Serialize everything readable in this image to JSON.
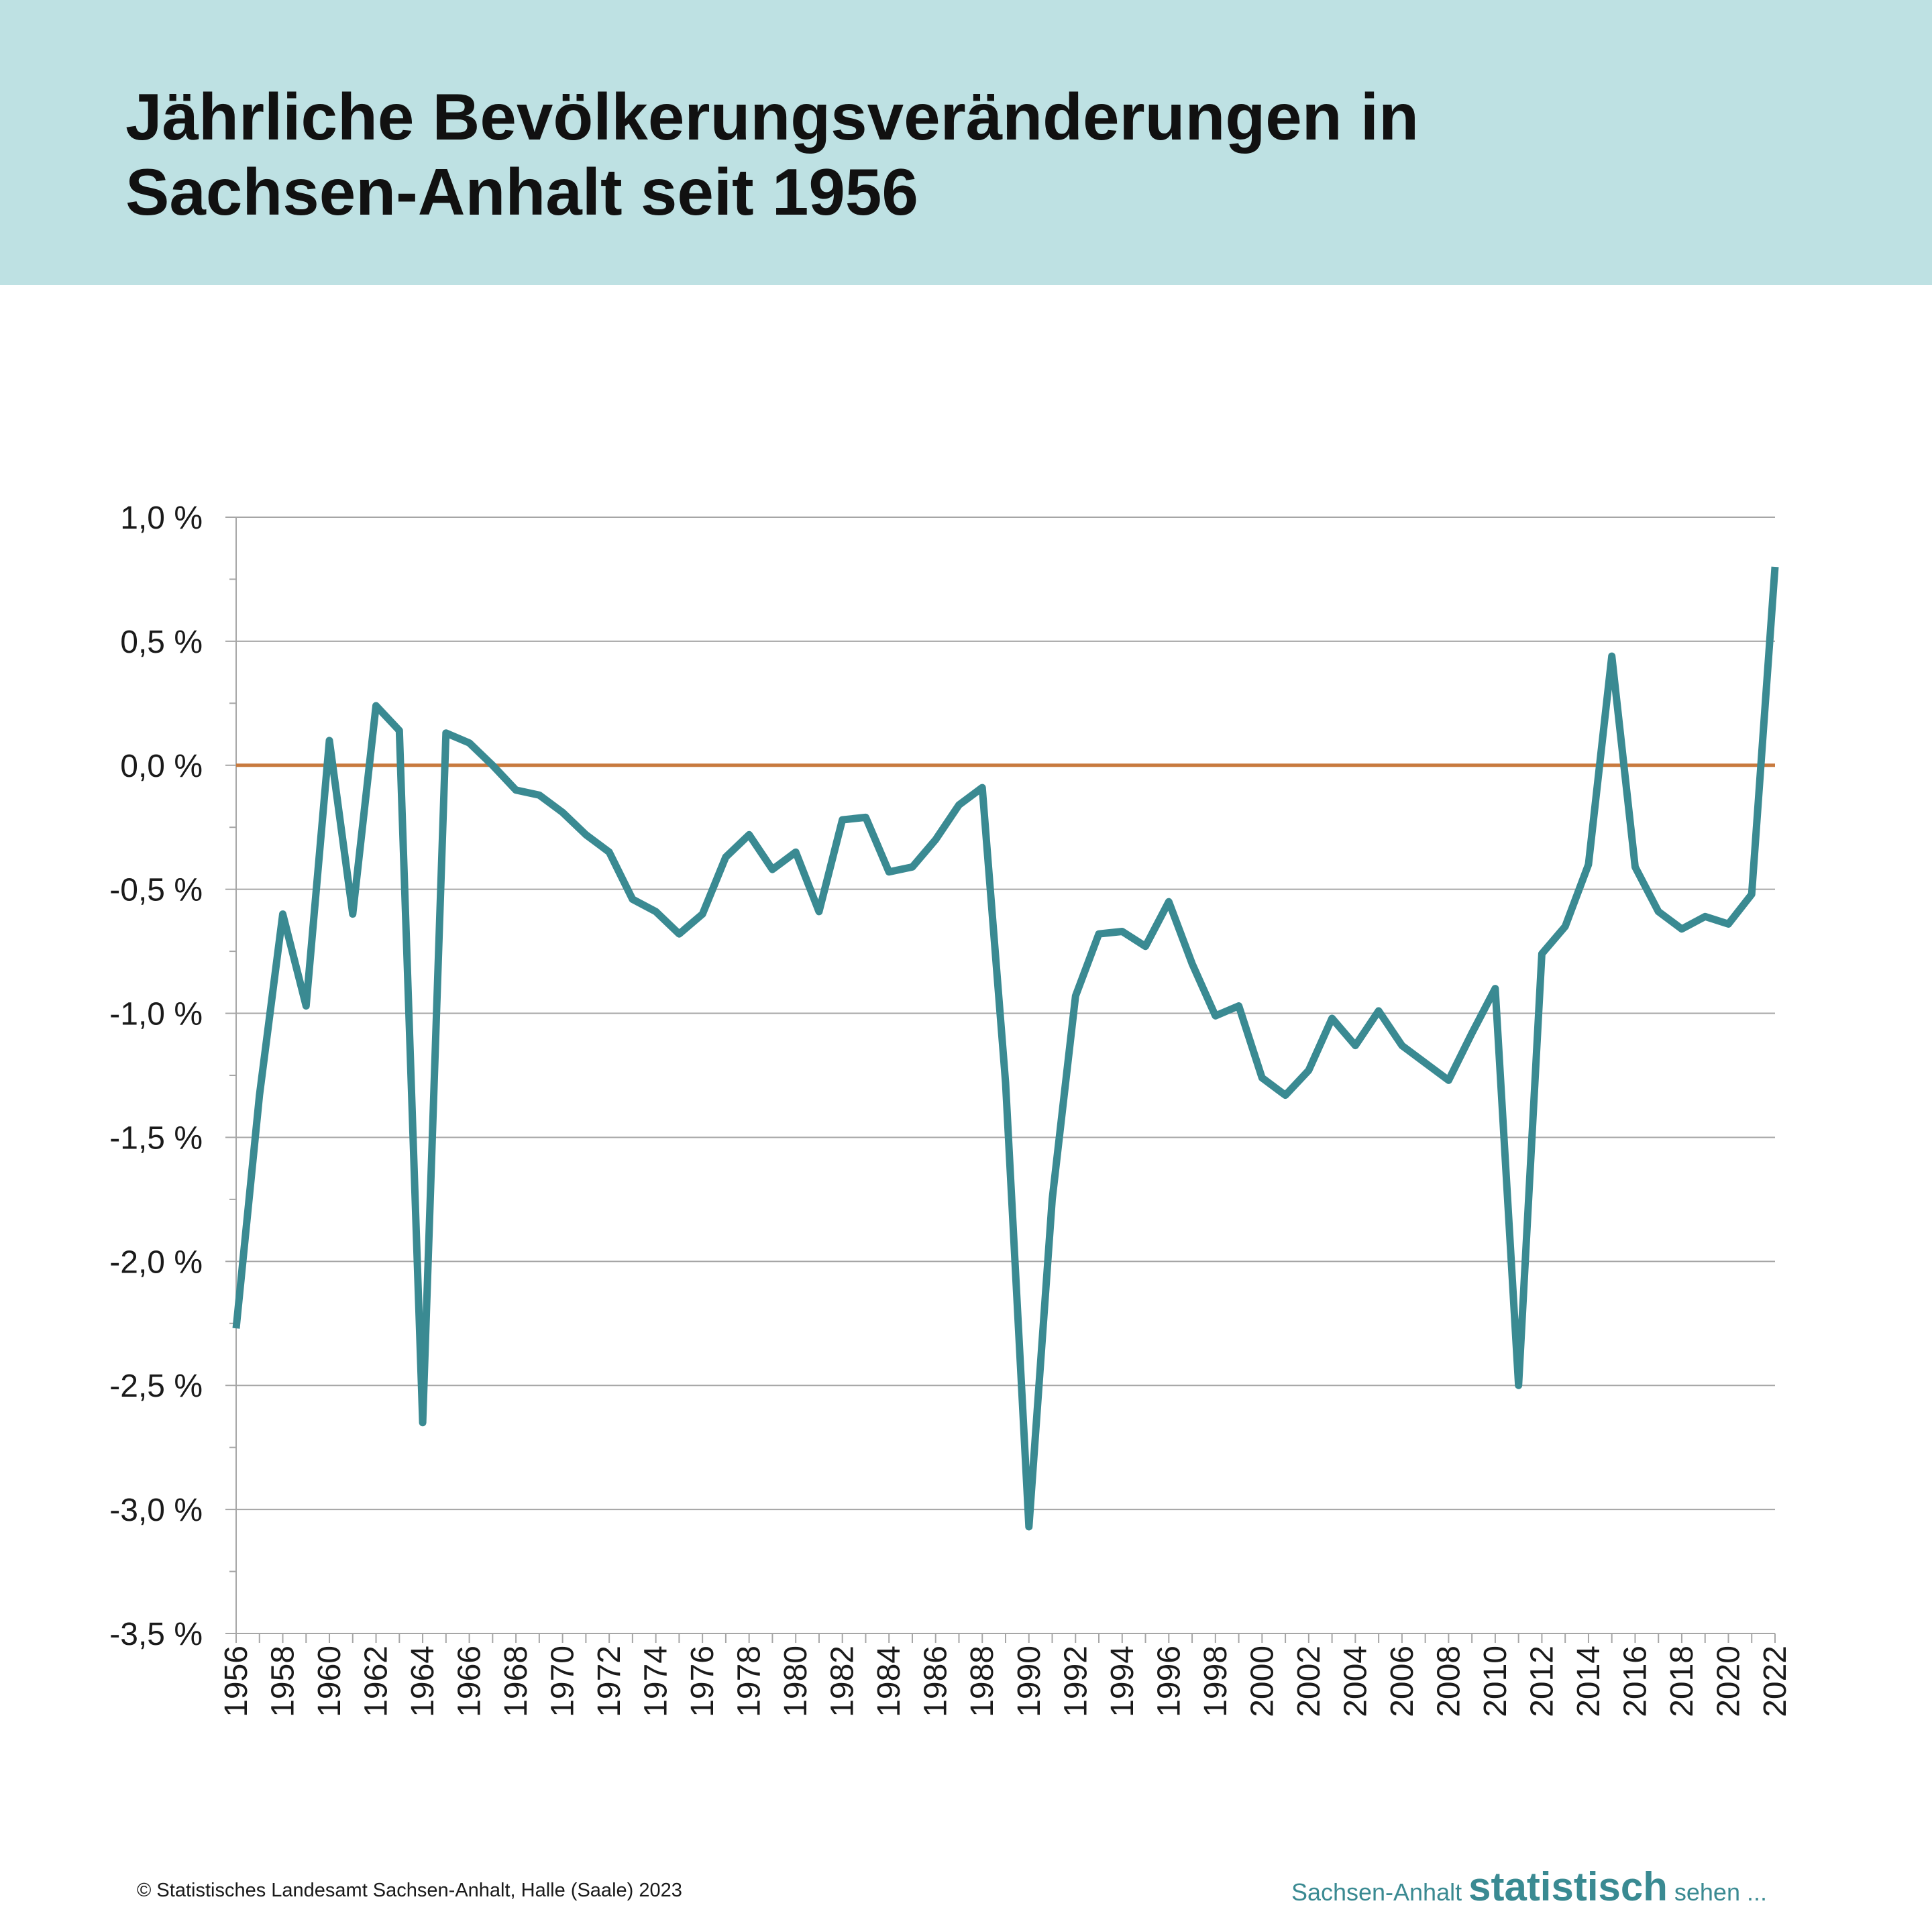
{
  "header": {
    "title_line1": "Jährliche Bevölkerungsveränderungen in",
    "title_line2": "Sachsen-Anhalt seit 1956"
  },
  "colors": {
    "header_bg": "#bee1e3",
    "line": "#3a8a92",
    "zero_line": "#c87a3e",
    "grid": "#a6a6a6"
  },
  "chart_data": {
    "type": "line",
    "title": "Jährliche Bevölkerungsveränderungen in Sachsen-Anhalt seit 1956",
    "xlabel": "",
    "ylabel": "",
    "ylim": [
      -3.5,
      1.0
    ],
    "y_ticks": [
      1.0,
      0.5,
      0.0,
      -0.5,
      -1.0,
      -1.5,
      -2.0,
      -2.5,
      -3.0,
      -3.5
    ],
    "y_tick_labels": [
      "1,0 %",
      "0,5 %",
      "0,0 %",
      "-0,5 %",
      "-1,0 %",
      "-1,5 %",
      "-2,0 %",
      "-2,5 %",
      "-3,0 %",
      "-3,5 %"
    ],
    "x_tick_labels": [
      "1956",
      "1958",
      "1960",
      "1962",
      "1964",
      "1966",
      "1968",
      "1970",
      "1972",
      "1974",
      "1976",
      "1978",
      "1980",
      "1982",
      "1984",
      "1986",
      "1988",
      "1990",
      "1992",
      "1994",
      "1996",
      "1998",
      "2000",
      "2002",
      "2004",
      "2006",
      "2008",
      "2010",
      "2012",
      "2014",
      "2016",
      "2018",
      "2020",
      "2022"
    ],
    "grid": true,
    "reference_line": 0.0,
    "series": [
      {
        "name": "",
        "x": [
          1956,
          1957,
          1958,
          1959,
          1960,
          1961,
          1962,
          1963,
          1964,
          1965,
          1966,
          1967,
          1968,
          1969,
          1970,
          1971,
          1972,
          1973,
          1974,
          1975,
          1976,
          1977,
          1978,
          1979,
          1980,
          1981,
          1982,
          1983,
          1984,
          1985,
          1986,
          1987,
          1988,
          1989,
          1990,
          1991,
          1992,
          1993,
          1994,
          1995,
          1996,
          1997,
          1998,
          1999,
          2000,
          2001,
          2002,
          2003,
          2004,
          2005,
          2006,
          2007,
          2008,
          2009,
          2010,
          2011,
          2012,
          2013,
          2014,
          2015,
          2016,
          2017,
          2018,
          2019,
          2020,
          2021,
          2022
        ],
        "y": [
          -2.27,
          -1.33,
          -0.6,
          -0.97,
          0.1,
          -0.6,
          0.24,
          0.14,
          -2.65,
          0.13,
          0.09,
          0.0,
          -0.1,
          -0.12,
          -0.19,
          -0.28,
          -0.35,
          -0.54,
          -0.59,
          -0.68,
          -0.6,
          -0.37,
          -0.28,
          -0.42,
          -0.35,
          -0.59,
          -0.22,
          -0.21,
          -0.43,
          -0.41,
          -0.3,
          -0.16,
          -0.09,
          -1.28,
          -3.07,
          -1.75,
          -0.93,
          -0.68,
          -0.67,
          -0.73,
          -0.55,
          -0.8,
          -1.01,
          -0.97,
          -1.26,
          -1.33,
          -1.23,
          -1.02,
          -1.13,
          -0.99,
          -1.13,
          -1.2,
          -1.27,
          -1.08,
          -0.9,
          -2.5,
          -0.76,
          -0.65,
          -0.4,
          0.44,
          -0.41,
          -0.59,
          -0.66,
          -0.61,
          -0.64,
          -0.52,
          0.8
        ]
      }
    ]
  },
  "footer": {
    "copyright": "© Statistisches Landesamt Sachsen-Anhalt, Halle (Saale) 2023",
    "brand_prefix": "Sachsen-Anhalt ",
    "brand_main": "statistisch",
    "brand_suffix": " sehen ..."
  }
}
